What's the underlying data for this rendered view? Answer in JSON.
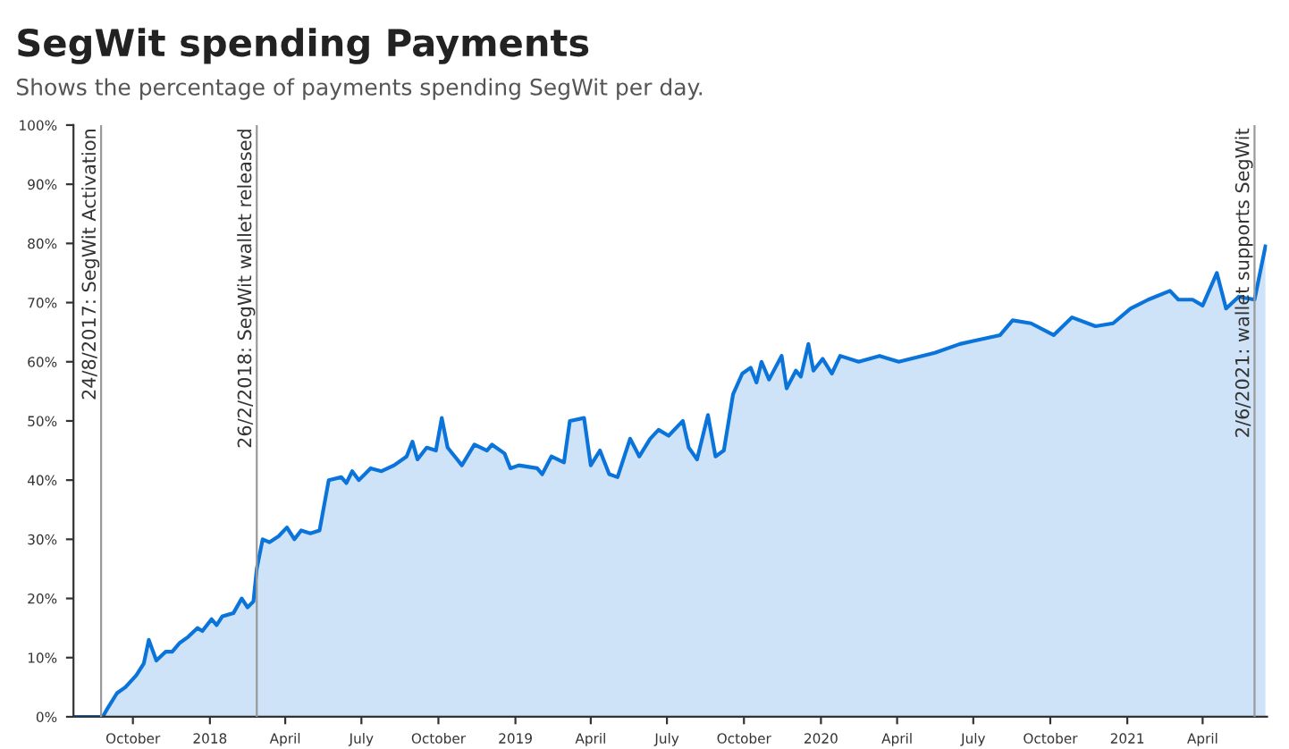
{
  "chart_data": {
    "type": "area",
    "title": "SegWit spending Payments",
    "subtitle": "Shows the percentage of payments spending SegWit per day.",
    "x": [
      "2017-07-22",
      "2017-08-26",
      "2017-09-01",
      "2017-09-12",
      "2017-09-22",
      "2017-10-05",
      "2017-10-14",
      "2017-10-20",
      "2017-10-29",
      "2017-11-09",
      "2017-11-17",
      "2017-11-26",
      "2017-12-06",
      "2017-12-17",
      "2017-12-23",
      "2018-01-03",
      "2018-01-09",
      "2018-01-16",
      "2018-01-29",
      "2018-02-08",
      "2018-02-15",
      "2018-02-22",
      "2018-02-26",
      "2018-03-05",
      "2018-03-13",
      "2018-03-24",
      "2018-04-03",
      "2018-04-12",
      "2018-04-20",
      "2018-05-01",
      "2018-05-12",
      "2018-05-23",
      "2018-06-07",
      "2018-06-13",
      "2018-06-20",
      "2018-06-28",
      "2018-07-12",
      "2018-07-25",
      "2018-08-09",
      "2018-08-24",
      "2018-08-31",
      "2018-09-06",
      "2018-09-17",
      "2018-09-28",
      "2018-10-05",
      "2018-10-12",
      "2018-10-29",
      "2018-11-13",
      "2018-11-28",
      "2018-12-04",
      "2018-12-19",
      "2018-12-26",
      "2019-01-05",
      "2019-01-27",
      "2019-02-02",
      "2019-02-13",
      "2019-02-28",
      "2019-03-07",
      "2019-03-24",
      "2019-04-01",
      "2019-04-12",
      "2019-04-23",
      "2019-05-03",
      "2019-05-18",
      "2019-05-29",
      "2019-06-11",
      "2019-06-21",
      "2019-07-03",
      "2019-07-20",
      "2019-07-27",
      "2019-08-06",
      "2019-08-19",
      "2019-08-28",
      "2019-09-07",
      "2019-09-18",
      "2019-09-29",
      "2019-10-09",
      "2019-10-16",
      "2019-10-22",
      "2019-10-31",
      "2019-11-15",
      "2019-11-21",
      "2019-12-02",
      "2019-12-08",
      "2019-12-17",
      "2019-12-23",
      "2020-01-03",
      "2020-01-14",
      "2020-01-24",
      "2020-02-15",
      "2020-03-11",
      "2020-04-03",
      "2020-05-16",
      "2020-06-15",
      "2020-07-01",
      "2020-08-02",
      "2020-08-17",
      "2020-09-08",
      "2020-10-05",
      "2020-10-27",
      "2020-11-24",
      "2020-12-15",
      "2021-01-05",
      "2021-01-26",
      "2021-02-21",
      "2021-03-03",
      "2021-03-20",
      "2021-04-01",
      "2021-04-18",
      "2021-04-29",
      "2021-05-14",
      "2021-06-02",
      "2021-06-15"
    ],
    "series": [
      {
        "color": "#0a74da",
        "values": [
          0,
          0,
          1.5,
          4,
          5,
          7,
          9,
          13,
          9.5,
          11,
          11,
          12.5,
          13.5,
          15,
          14.5,
          16.5,
          15.5,
          17,
          17.5,
          20,
          18.5,
          19.5,
          25,
          30,
          29.5,
          30.5,
          32,
          30,
          31.5,
          31,
          31.5,
          40,
          40.5,
          39.5,
          41.5,
          40,
          42,
          41.5,
          42.5,
          44,
          46.5,
          43.5,
          45.5,
          45,
          50.5,
          45.5,
          42.5,
          46,
          45,
          46,
          44.5,
          42,
          42.5,
          42,
          41,
          44,
          43,
          50,
          50.5,
          42.5,
          45,
          41,
          40.5,
          47,
          44,
          47,
          48.5,
          47.5,
          50,
          45.5,
          43.5,
          51,
          44,
          45,
          54.5,
          58,
          59,
          56.5,
          60,
          57,
          61,
          55.5,
          58.5,
          57.5,
          63,
          58.5,
          60.5,
          58,
          61,
          60,
          61,
          60,
          61.5,
          63,
          63.5,
          64.5,
          67,
          66.5,
          64.5,
          67.5,
          66,
          66.5,
          69,
          70.5,
          72,
          70.5,
          70.5,
          69.5,
          75,
          69,
          71,
          70.5,
          79.5
        ]
      }
    ],
    "xlim": [
      "2017-07-22",
      "2021-06-17"
    ],
    "xticks": [
      {
        "value": "2017-10-01",
        "label": "October"
      },
      {
        "value": "2018-01-01",
        "label": "2018"
      },
      {
        "value": "2018-04-01",
        "label": "April"
      },
      {
        "value": "2018-07-01",
        "label": "July"
      },
      {
        "value": "2018-10-01",
        "label": "October"
      },
      {
        "value": "2019-01-01",
        "label": "2019"
      },
      {
        "value": "2019-04-01",
        "label": "April"
      },
      {
        "value": "2019-07-01",
        "label": "July"
      },
      {
        "value": "2019-10-01",
        "label": "October"
      },
      {
        "value": "2020-01-01",
        "label": "2020"
      },
      {
        "value": "2020-04-01",
        "label": "April"
      },
      {
        "value": "2020-07-01",
        "label": "July"
      },
      {
        "value": "2020-10-01",
        "label": "October"
      },
      {
        "value": "2021-01-01",
        "label": "2021"
      },
      {
        "value": "2021-04-01",
        "label": "April"
      }
    ],
    "ylim": [
      0,
      100
    ],
    "yticks": [
      {
        "value": 0,
        "label": "0%"
      },
      {
        "value": 10,
        "label": "10%"
      },
      {
        "value": 20,
        "label": "20%"
      },
      {
        "value": 30,
        "label": "30%"
      },
      {
        "value": 40,
        "label": "40%"
      },
      {
        "value": 50,
        "label": "50%"
      },
      {
        "value": 60,
        "label": "60%"
      },
      {
        "value": 70,
        "label": "70%"
      },
      {
        "value": 80,
        "label": "80%"
      },
      {
        "value": 90,
        "label": "90%"
      },
      {
        "value": 100,
        "label": "100%"
      }
    ],
    "ref_lines": [
      {
        "axis": "x",
        "value": "2017-08-24",
        "label": "24/8/2017: SegWit Activation",
        "color": "#999999"
      },
      {
        "axis": "x",
        "value": "2018-02-26",
        "label": "26/2/2018: SegWit wallet released",
        "color": "#999999"
      },
      {
        "axis": "x",
        "value": "2021-06-02",
        "label": "2/6/2021: wallet supports SegWit",
        "color": "#999999"
      }
    ]
  }
}
